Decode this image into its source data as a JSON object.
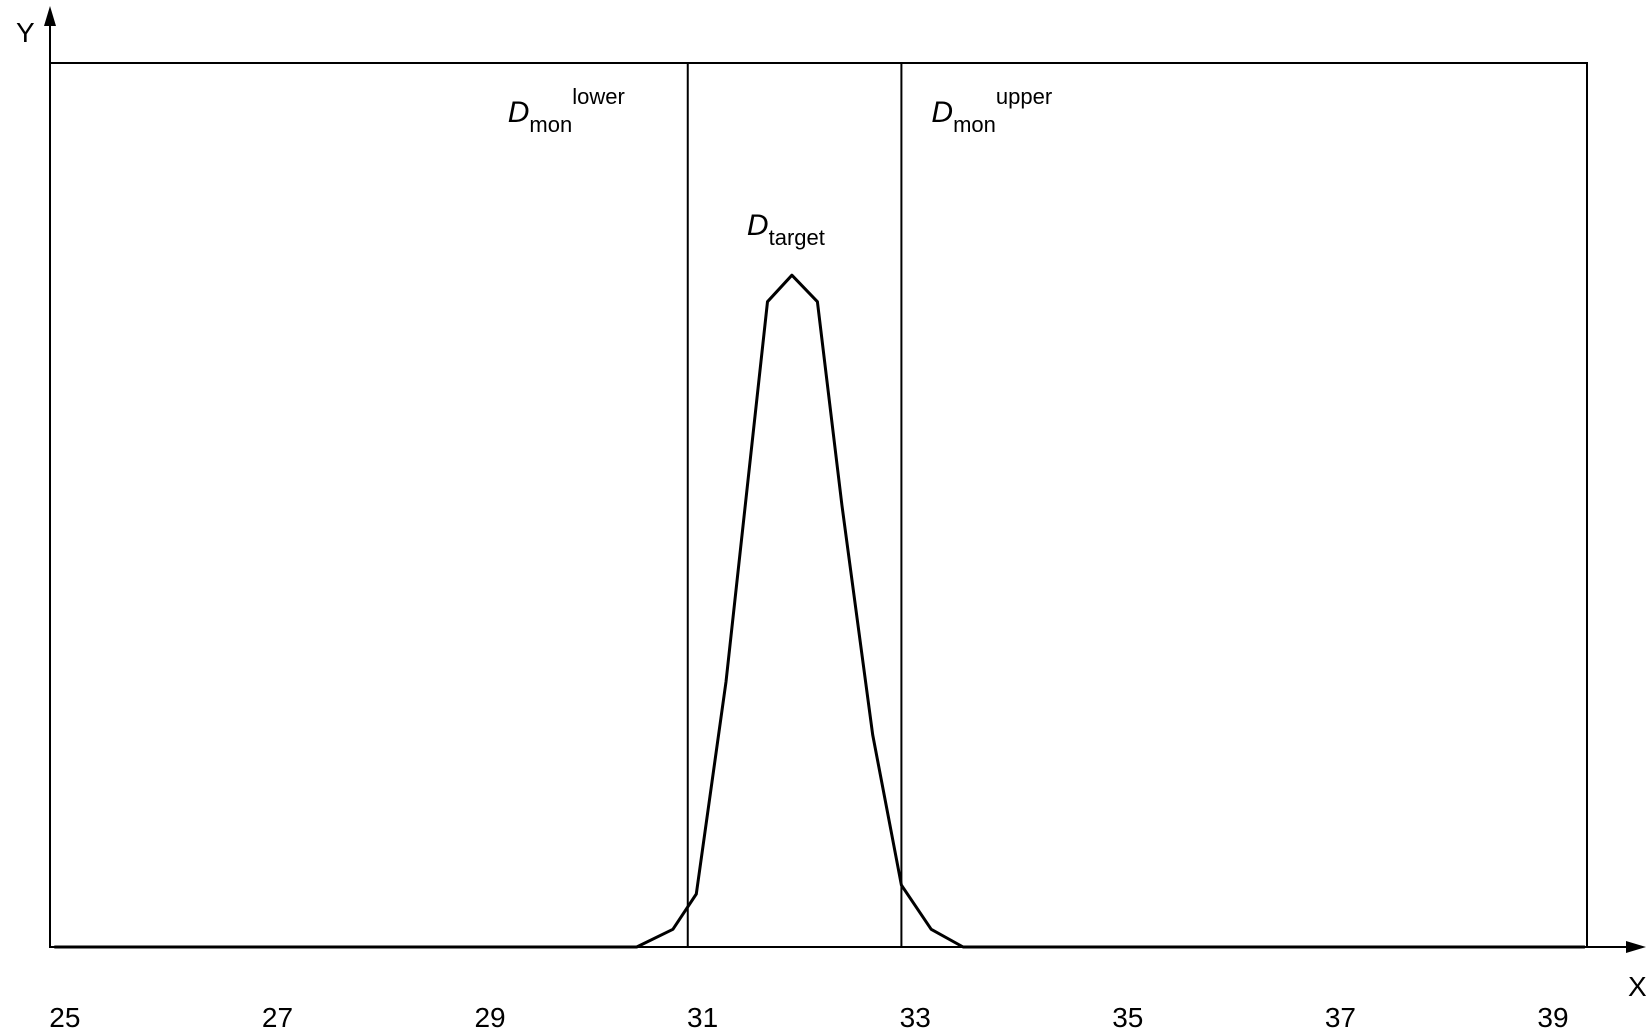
{
  "chart_data": {
    "type": "line",
    "xlabel": "X",
    "ylabel": "Y",
    "x": [
      24.9,
      30.38,
      30.72,
      30.94,
      31.22,
      31.61,
      31.84,
      32.08,
      32.31,
      32.6,
      32.87,
      33.15,
      33.45,
      39.3
    ],
    "values": [
      0,
      0,
      0.02,
      0.06,
      0.3,
      0.73,
      0.76,
      0.73,
      0.5,
      0.24,
      0.07,
      0.02,
      0,
      0
    ],
    "color": "#000000",
    "xlim": [
      24.86,
      39.32
    ],
    "ylim": [
      0,
      1
    ],
    "xticks": [
      25,
      27,
      29,
      31,
      33,
      35,
      37,
      39
    ],
    "annotations": [
      {
        "x": 30.86,
        "label": "D",
        "sub": "mon",
        "sup": "lower"
      },
      {
        "x": 32.87,
        "label": "D",
        "sub": "mon",
        "sup": "upper"
      }
    ],
    "peak_label": {
      "label": "D",
      "sub": "target"
    }
  }
}
